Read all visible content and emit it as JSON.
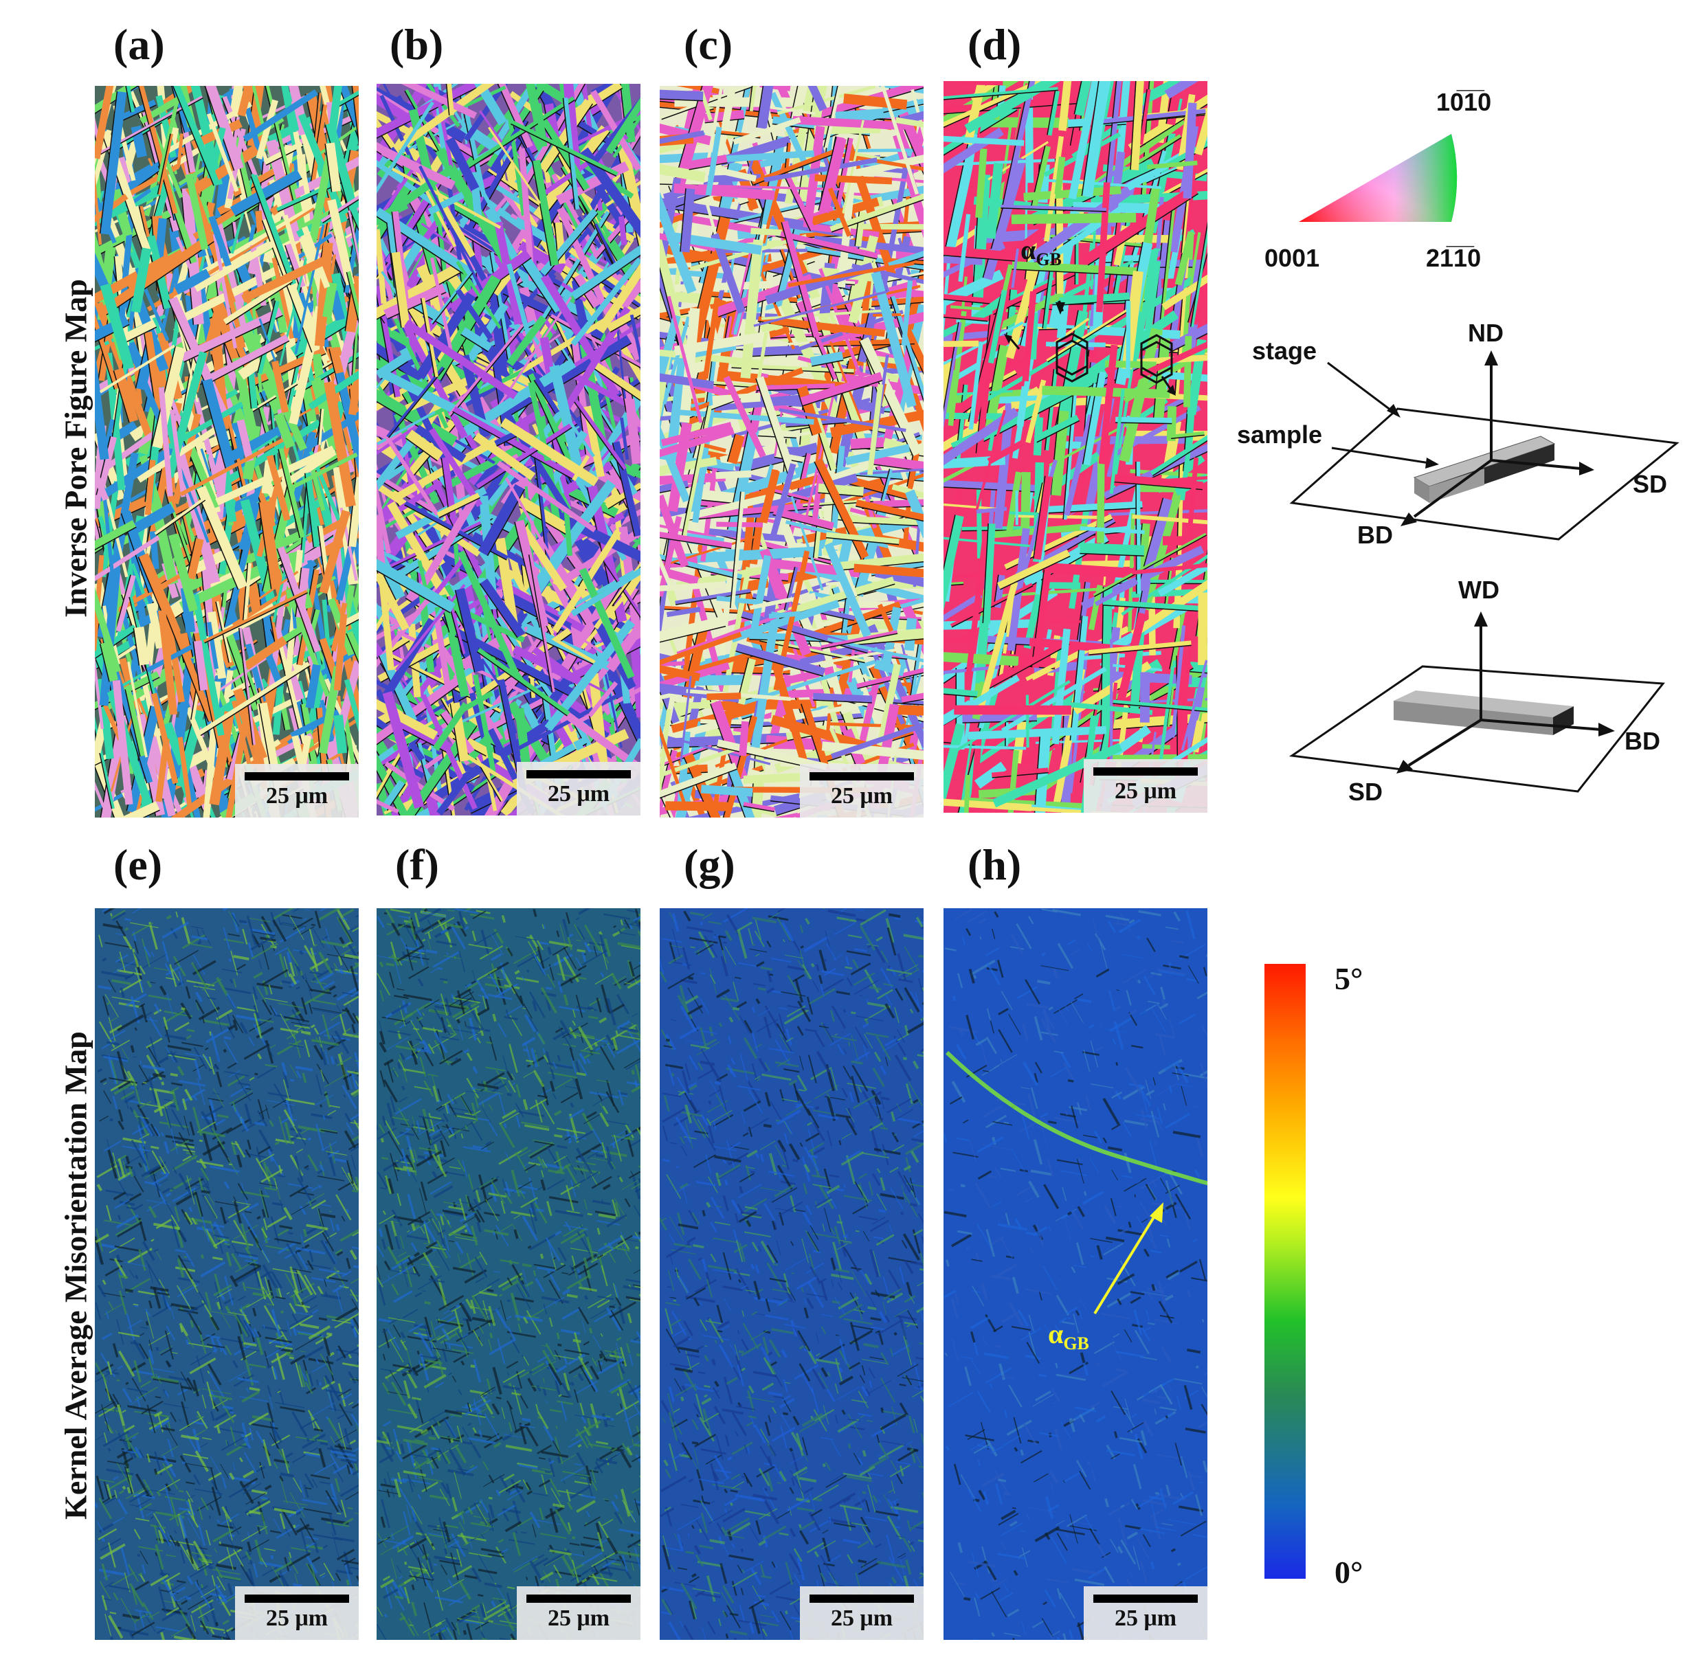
{
  "row_labels": {
    "top": "Inverse Pore Figure Map",
    "bottom": "Kernel Average Misorientation Map"
  },
  "panels": [
    {
      "label": "(a)",
      "scale": "25 μm"
    },
    {
      "label": "(b)",
      "scale": "25 μm"
    },
    {
      "label": "(c)",
      "scale": "25 μm"
    },
    {
      "label": "(d)",
      "scale": "25 μm"
    },
    {
      "label": "(e)",
      "scale": "25 μm"
    },
    {
      "label": "(f)",
      "scale": "25 μm"
    },
    {
      "label": "(g)",
      "scale": "25 μm"
    },
    {
      "label": "(h)",
      "scale": "25 μm"
    }
  ],
  "ipf_key": {
    "top": "10̅1̅0",
    "left": "0001",
    "right": "21̅1̅0"
  },
  "overlay": {
    "alpha": "α",
    "sub": "GB"
  },
  "axes": {
    "stage": "stage",
    "sample": "sample",
    "nd": "ND",
    "sd": "SD",
    "bd": "BD",
    "wd": "WD"
  },
  "colorbar": {
    "max": "5°",
    "min": "0°",
    "colors": [
      "#1a2ae6",
      "#2a8a55",
      "#22c22a",
      "#ffff1a",
      "#ff6a00",
      "#ff1a00"
    ]
  },
  "palette": {
    "ipf_a": [
      "#f08a3c",
      "#e49adb",
      "#32d6a8",
      "#6fe06a",
      "#f6f0b0",
      "#2e8fd9"
    ],
    "ipf_b": [
      "#b04ee0",
      "#43d26e",
      "#e07bd6",
      "#58c7e0",
      "#3d46c9",
      "#f0e070"
    ],
    "ipf_c": [
      "#f26a1d",
      "#e9f0c8",
      "#e85cc8",
      "#7c6fe0",
      "#66c9e8",
      "#d9f0a0"
    ],
    "ipf_d": [
      "#f5326e",
      "#3fe0b0",
      "#f2e66a",
      "#7ae05c",
      "#8c7ae8",
      "#60e0e8"
    ]
  }
}
